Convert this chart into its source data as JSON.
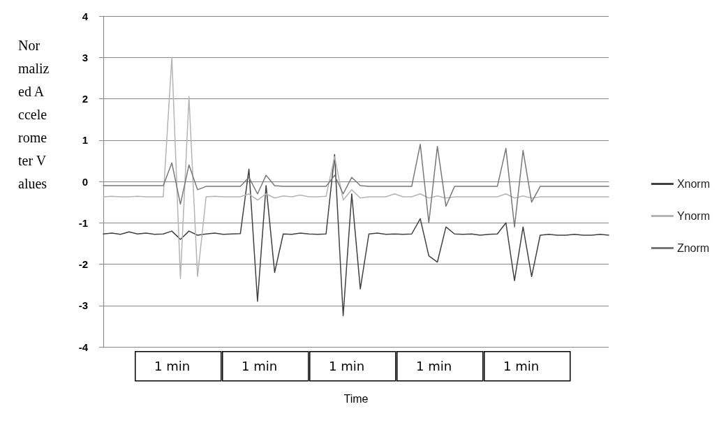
{
  "chart_data": {
    "type": "line",
    "xlabel": "Time",
    "ylabel": "Normalized Accelerometer Values",
    "categories": [
      null,
      null,
      null,
      null,
      null,
      null,
      null,
      null,
      null,
      null,
      null,
      null,
      null,
      null,
      null,
      null,
      null,
      null,
      null,
      null,
      null,
      null,
      null,
      null,
      null,
      null,
      null,
      null,
      null,
      null,
      null,
      null,
      null,
      null,
      null,
      null,
      null,
      null,
      null,
      null,
      null,
      null,
      null,
      null,
      null,
      null,
      null,
      null,
      null,
      null,
      null,
      null,
      null,
      null,
      null,
      null,
      null,
      null,
      null,
      null
    ],
    "series": [
      {
        "name": "Xnorm",
        "color": "#404040",
        "values": [
          -1.27,
          -1.25,
          -1.28,
          -1.22,
          -1.27,
          -1.25,
          -1.28,
          -1.27,
          -1.2,
          -1.4,
          -1.2,
          -1.3,
          -1.27,
          -1.25,
          -1.28,
          -1.27,
          -1.26,
          0.3,
          -2.9,
          -0.1,
          -2.2,
          -1.27,
          -1.28,
          -1.25,
          -1.27,
          -1.28,
          -1.27,
          0.65,
          -3.25,
          -0.3,
          -2.6,
          -1.27,
          -1.25,
          -1.28,
          -1.27,
          -1.28,
          -1.27,
          -0.9,
          -1.8,
          -1.95,
          -1.1,
          -1.27,
          -1.28,
          -1.27,
          -1.3,
          -1.28,
          -1.27,
          -1.0,
          -2.4,
          -1.1,
          -2.3,
          -1.3,
          -1.28,
          -1.3,
          -1.3,
          -1.28,
          -1.3,
          -1.3,
          -1.28,
          -1.3
        ]
      },
      {
        "name": "Ynorm",
        "color": "#b4b4b4",
        "values": [
          -0.37,
          -0.36,
          -0.37,
          -0.37,
          -0.36,
          -0.37,
          -0.37,
          -0.37,
          3.0,
          -2.35,
          2.05,
          -2.3,
          -0.37,
          -0.36,
          -0.37,
          -0.37,
          -0.37,
          -0.3,
          -0.45,
          -0.3,
          -0.4,
          -0.35,
          -0.37,
          -0.33,
          -0.37,
          -0.37,
          -0.36,
          0.6,
          -0.45,
          -0.2,
          -0.4,
          -0.37,
          -0.37,
          -0.37,
          -0.3,
          -0.37,
          -0.37,
          -0.3,
          -0.4,
          -0.35,
          -0.4,
          -0.37,
          -0.37,
          -0.37,
          -0.37,
          -0.37,
          -0.37,
          -0.3,
          -0.4,
          -0.35,
          -0.4,
          -0.37,
          -0.37,
          -0.37,
          -0.37,
          -0.37,
          -0.37,
          -0.37,
          -0.37,
          -0.37
        ]
      },
      {
        "name": "Znorm",
        "color": "#787878",
        "values": [
          -0.1,
          -0.1,
          -0.1,
          -0.1,
          -0.1,
          -0.1,
          -0.1,
          -0.1,
          0.45,
          -0.55,
          0.4,
          -0.2,
          -0.12,
          -0.12,
          -0.12,
          -0.12,
          -0.12,
          0.1,
          -0.3,
          0.15,
          -0.1,
          -0.12,
          -0.12,
          -0.12,
          -0.12,
          -0.12,
          -0.12,
          0.15,
          -0.3,
          0.1,
          -0.1,
          -0.12,
          -0.12,
          -0.12,
          -0.12,
          -0.12,
          -0.12,
          0.9,
          -1.0,
          0.85,
          -0.6,
          -0.12,
          -0.12,
          -0.12,
          -0.12,
          -0.12,
          -0.12,
          0.8,
          -1.1,
          0.75,
          -0.5,
          -0.12,
          -0.12,
          -0.12,
          -0.12,
          -0.12,
          -0.12,
          -0.12,
          -0.12,
          -0.12
        ]
      }
    ],
    "ylim": [
      -4,
      4
    ],
    "yticks": [
      -4,
      -3,
      -2,
      -1,
      0,
      1,
      2,
      3,
      4
    ],
    "grid": "y",
    "legend": "right",
    "marker": "none",
    "annotations": [
      "1 min",
      "1 min",
      "1 min",
      "1 min",
      "1 min"
    ]
  }
}
